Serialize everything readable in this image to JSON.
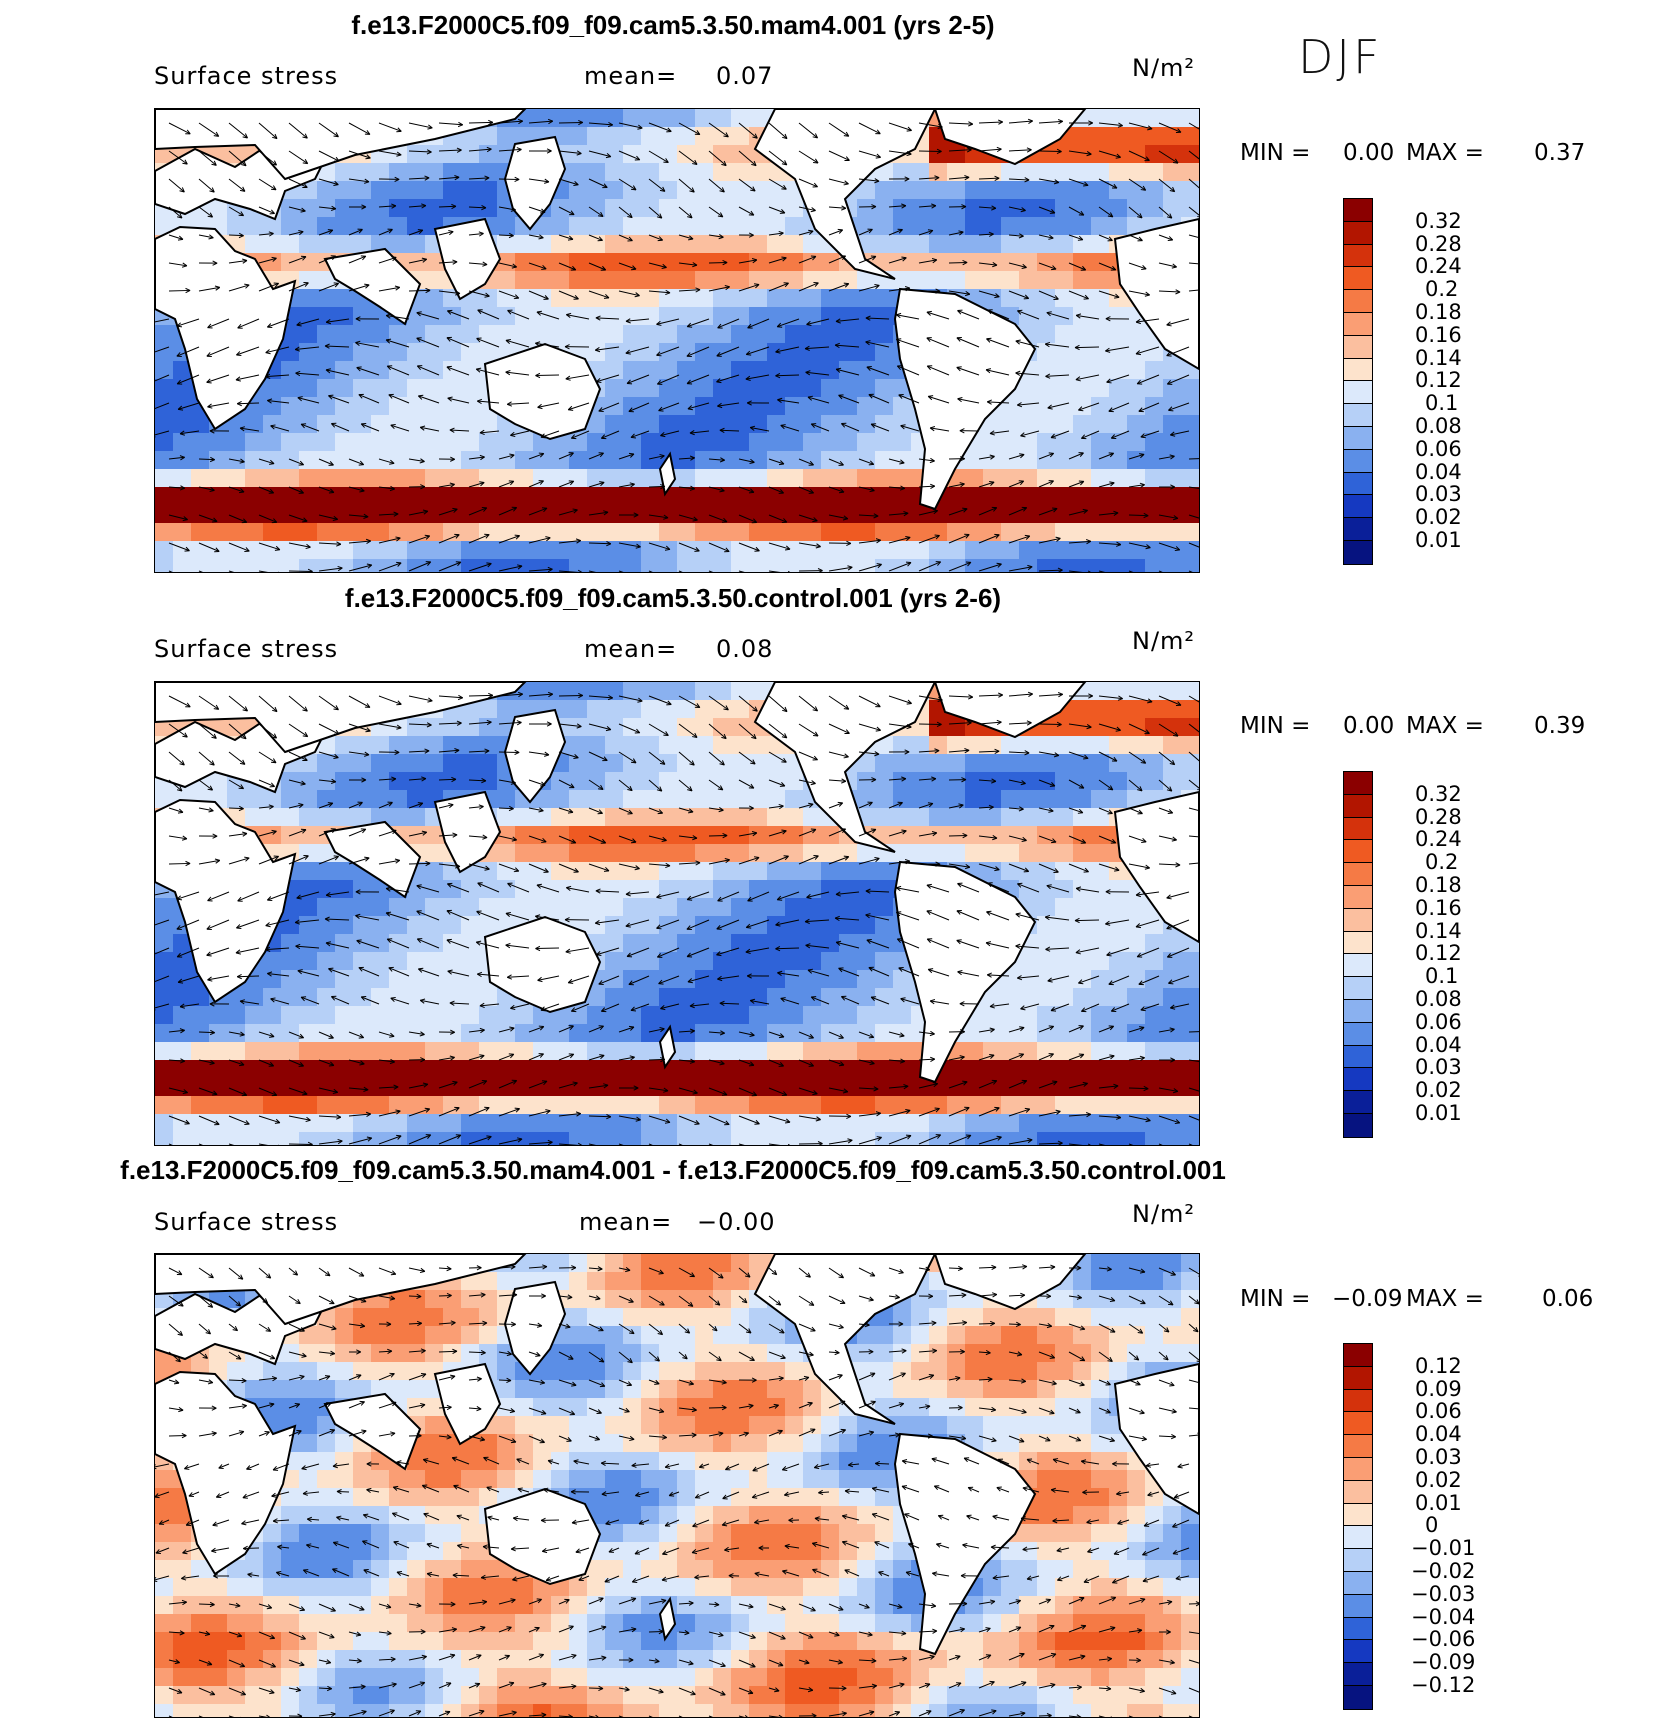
{
  "season": "DJF",
  "panels": [
    {
      "title": "f.e13.F2000C5.f09_f09.cam5.3.50.mam4.001 (yrs 2-5)",
      "variable": "Surface stress",
      "mean_label": "mean=",
      "mean_value": "0.07",
      "units": "N/m²",
      "min_label": "MIN =",
      "min_value": "0.00",
      "max_label": "MAX =",
      "max_value": "0.37",
      "colorbar": {
        "labels": [
          "0.32",
          "0.28",
          "0.24",
          "0.2",
          "0.18",
          "0.16",
          "0.14",
          "0.12",
          "0.1",
          "0.08",
          "0.06",
          "0.04",
          "0.03",
          "0.02",
          "0.01"
        ],
        "colors": [
          "#8b0000",
          "#b21500",
          "#d4320c",
          "#ef5a22",
          "#f57a45",
          "#fa9e74",
          "#fbbf9f",
          "#fde3cc",
          "#dce9fb",
          "#b6d0f7",
          "#8ab1f0",
          "#5b8ee6",
          "#2f63d8",
          "#1539c1",
          "#0a1f99",
          "#061380"
        ]
      }
    },
    {
      "title": "f.e13.F2000C5.f09_f09.cam5.3.50.control.001 (yrs 2-6)",
      "variable": "Surface stress",
      "mean_label": "mean=",
      "mean_value": "0.08",
      "units": "N/m²",
      "min_label": "MIN =",
      "min_value": "0.00",
      "max_label": "MAX =",
      "max_value": "0.39",
      "colorbar": {
        "labels": [
          "0.32",
          "0.28",
          "0.24",
          "0.2",
          "0.18",
          "0.16",
          "0.14",
          "0.12",
          "0.1",
          "0.08",
          "0.06",
          "0.04",
          "0.03",
          "0.02",
          "0.01"
        ],
        "colors": [
          "#8b0000",
          "#b21500",
          "#d4320c",
          "#ef5a22",
          "#f57a45",
          "#fa9e74",
          "#fbbf9f",
          "#fde3cc",
          "#dce9fb",
          "#b6d0f7",
          "#8ab1f0",
          "#5b8ee6",
          "#2f63d8",
          "#1539c1",
          "#0a1f99",
          "#061380"
        ]
      }
    },
    {
      "title": "f.e13.F2000C5.f09_f09.cam5.3.50.mam4.001 - f.e13.F2000C5.f09_f09.cam5.3.50.control.001",
      "variable": "Surface stress",
      "mean_label": "mean=",
      "mean_value": "−0.00",
      "units": "N/m²",
      "min_label": "MIN =",
      "min_value": "−0.09",
      "max_label": "MAX =",
      "max_value": "0.06",
      "colorbar": {
        "labels": [
          "0.12",
          "0.09",
          "0.06",
          "0.04",
          "0.03",
          "0.02",
          "0.01",
          "0",
          "−0.01",
          "−0.02",
          "−0.03",
          "−0.04",
          "−0.06",
          "−0.09",
          "−0.12"
        ],
        "colors": [
          "#8b0000",
          "#b21500",
          "#d4320c",
          "#ef5a22",
          "#f57a45",
          "#fa9e74",
          "#fbbf9f",
          "#fde3cc",
          "#dce9fb",
          "#b6d0f7",
          "#8ab1f0",
          "#5b8ee6",
          "#2f63d8",
          "#1539c1",
          "#0a1f99",
          "#061380"
        ]
      }
    }
  ]
}
